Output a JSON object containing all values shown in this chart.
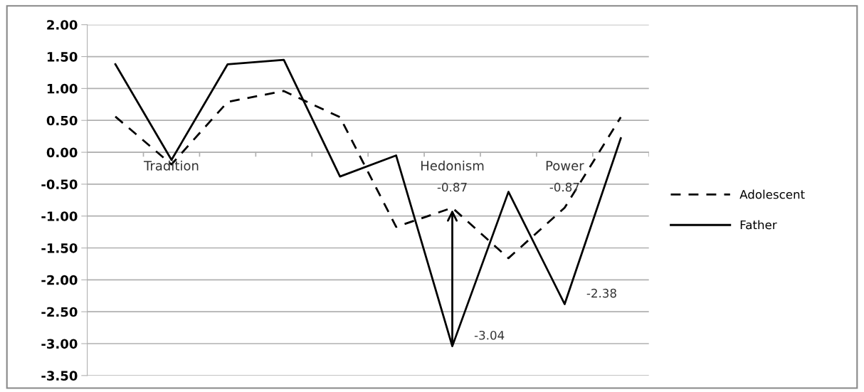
{
  "chart_data": {
    "type": "line",
    "categories": [
      null,
      "Tradition",
      null,
      null,
      null,
      null,
      "Hedonism",
      null,
      "Power",
      null
    ],
    "series": [
      {
        "name": "Adolescent",
        "color": "#000000",
        "line_style": "dashed",
        "values": [
          0.56,
          -0.19,
          0.79,
          0.96,
          0.55,
          -1.17,
          -0.87,
          -1.66,
          -0.87,
          0.55
        ],
        "value_labels": [
          null,
          null,
          null,
          null,
          null,
          null,
          "-0.87",
          null,
          "-0.87",
          null
        ]
      },
      {
        "name": "Father",
        "color": "#000000",
        "line_style": "solid",
        "values": [
          1.38,
          -0.12,
          1.38,
          1.45,
          -0.38,
          -0.05,
          -3.04,
          -0.62,
          -2.38,
          0.22
        ],
        "value_labels": [
          null,
          null,
          null,
          null,
          null,
          null,
          "-3.04",
          null,
          "-2.38",
          null
        ]
      }
    ],
    "ylim": [
      -3.5,
      2.0
    ],
    "yticks": [
      {
        "value": 2.0,
        "label": "2.00"
      },
      {
        "value": 1.5,
        "label": "1.50"
      },
      {
        "value": 1.0,
        "label": "1.00"
      },
      {
        "value": 0.5,
        "label": "0.50"
      },
      {
        "value": 0.0,
        "label": "0.00"
      },
      {
        "value": -0.5,
        "label": "-0.50"
      },
      {
        "value": -1.0,
        "label": "-1.00"
      },
      {
        "value": -1.5,
        "label": "-1.50"
      },
      {
        "value": -2.0,
        "label": "-2.00"
      },
      {
        "value": -2.5,
        "label": "-2.50"
      },
      {
        "value": -3.0,
        "label": "-3.00"
      },
      {
        "value": -3.5,
        "label": "-3.50"
      }
    ],
    "grid": "y",
    "legend": "right",
    "marker": "none"
  }
}
